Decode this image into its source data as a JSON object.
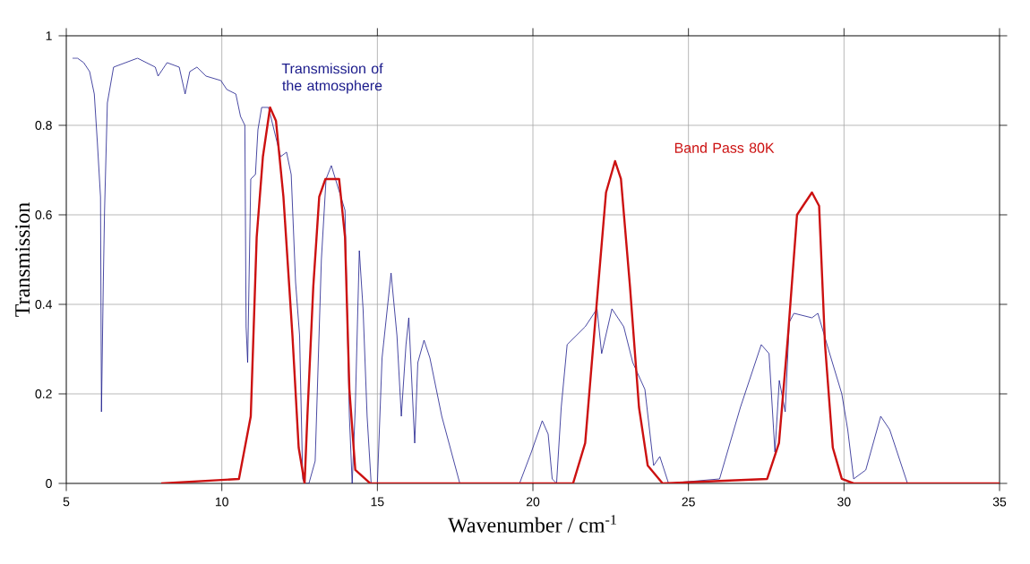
{
  "chart_data": {
    "type": "line",
    "xlabel": "Wavenumber / cm$^{-1}$",
    "ylabel": "Transmission",
    "xlim": [
      5,
      35
    ],
    "ylim": [
      0,
      1
    ],
    "xticks": [
      5,
      10,
      15,
      20,
      25,
      30,
      35
    ],
    "yticks": [
      0,
      0.2,
      0.4,
      0.6,
      0.8,
      1
    ],
    "grid": true,
    "marker": "none",
    "line_style": "solid",
    "series": [
      {
        "name": "Transmission of the atmosphere",
        "color": "#1c1c8c",
        "x": [
          5.2,
          5.36,
          5.56,
          5.75,
          5.9,
          6.0,
          6.1,
          6.13,
          6.19,
          6.23,
          6.32,
          6.52,
          7.29,
          7.86,
          7.95,
          8.24,
          8.63,
          8.82,
          8.97,
          9.2,
          9.49,
          9.97,
          10.16,
          10.45,
          10.6,
          10.74,
          10.78,
          10.83,
          10.93,
          11.08,
          11.16,
          11.28,
          11.5,
          11.89,
          12.08,
          12.23,
          12.37,
          12.5,
          12.6,
          12.66,
          12.8,
          13.0,
          13.2,
          13.35,
          13.52,
          13.96,
          14.1,
          14.19,
          14.29,
          14.42,
          14.54,
          14.67,
          14.8,
          15.0,
          15.15,
          15.44,
          15.63,
          15.77,
          15.92,
          16.01,
          16.2,
          16.3,
          16.5,
          16.69,
          17.07,
          17.65,
          19.57,
          19.95,
          20.3,
          20.49,
          20.62,
          20.76,
          20.91,
          21.1,
          21.68,
          22.06,
          22.21,
          22.54,
          22.92,
          23.21,
          23.6,
          23.88,
          24.08,
          24.36,
          26.0,
          26.67,
          27.34,
          27.59,
          27.78,
          27.92,
          28.11,
          28.24,
          28.39,
          28.97,
          29.16,
          29.54,
          29.93,
          30.12,
          30.31,
          30.7,
          31.18,
          31.47,
          31.85,
          32.04,
          35
        ],
        "values": [
          0.95,
          0.95,
          0.94,
          0.92,
          0.87,
          0.76,
          0.64,
          0.16,
          0.45,
          0.61,
          0.85,
          0.93,
          0.95,
          0.93,
          0.91,
          0.94,
          0.93,
          0.87,
          0.92,
          0.93,
          0.91,
          0.9,
          0.88,
          0.87,
          0.82,
          0.8,
          0.35,
          0.27,
          0.68,
          0.69,
          0.79,
          0.84,
          0.84,
          0.73,
          0.74,
          0.69,
          0.45,
          0.33,
          0.01,
          0,
          0,
          0.05,
          0.5,
          0.68,
          0.71,
          0.61,
          0.15,
          0,
          0.17,
          0.52,
          0.39,
          0.15,
          0,
          0,
          0.28,
          0.47,
          0.33,
          0.15,
          0.31,
          0.37,
          0.09,
          0.27,
          0.32,
          0.28,
          0.15,
          0,
          0,
          0.07,
          0.14,
          0.11,
          0.01,
          0,
          0.17,
          0.31,
          0.35,
          0.39,
          0.29,
          0.39,
          0.35,
          0.27,
          0.21,
          0.04,
          0.06,
          0,
          0.01,
          0.17,
          0.31,
          0.29,
          0.07,
          0.23,
          0.16,
          0.36,
          0.38,
          0.37,
          0.38,
          0.29,
          0.2,
          0.12,
          0.01,
          0.03,
          0.15,
          0.12,
          0.04,
          0,
          0
        ]
      },
      {
        "name": "Band Pass 80K",
        "color": "#cc1111",
        "x": [
          8.05,
          10.55,
          10.93,
          11.12,
          11.32,
          11.55,
          11.74,
          11.98,
          12.27,
          12.47,
          12.66,
          12.75,
          12.94,
          13.13,
          13.33,
          13.62,
          13.77,
          13.96,
          14.1,
          14.29,
          14.77,
          21.29,
          21.68,
          22.06,
          22.35,
          22.64,
          22.83,
          23.12,
          23.41,
          23.69,
          24.17,
          27.53,
          27.91,
          28.2,
          28.49,
          28.68,
          28.97,
          29.2,
          29.39,
          29.64,
          29.93,
          30.31,
          35
        ],
        "values": [
          0,
          0.01,
          0.15,
          0.55,
          0.73,
          0.84,
          0.81,
          0.64,
          0.33,
          0.08,
          0,
          0.15,
          0.44,
          0.64,
          0.68,
          0.68,
          0.68,
          0.55,
          0.21,
          0.03,
          0,
          0,
          0.09,
          0.41,
          0.65,
          0.72,
          0.68,
          0.44,
          0.17,
          0.04,
          0,
          0.01,
          0.09,
          0.33,
          0.6,
          0.62,
          0.65,
          0.62,
          0.31,
          0.08,
          0.01,
          0,
          0
        ]
      }
    ]
  }
}
